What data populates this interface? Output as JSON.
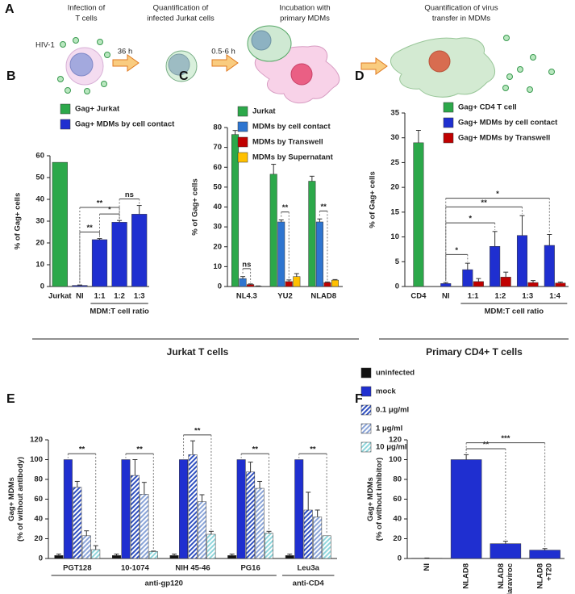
{
  "panel_a": {
    "label": "A",
    "steps": [
      [
        "Infection of",
        "T cells"
      ],
      [
        "Quantification of",
        "infected Jurkat cells"
      ],
      [
        "Incubation with",
        "primary MDMs"
      ],
      [
        "Quantification of virus",
        "transfer in MDMs"
      ]
    ],
    "virus": "HIV-1",
    "times": [
      "36 h",
      "0.5-6 h"
    ]
  },
  "captions": [
    "Jurkat T cells",
    "Primary CD4+ T cells"
  ],
  "chart_data": [
    {
      "type": "bar",
      "label": "B",
      "ylabel": [
        "% of Gag+ cells"
      ],
      "categories": [
        "Jurkat",
        "NI",
        "1:1",
        "1:2",
        "1:3"
      ],
      "series": [
        {
          "name": "Gag+ Jurkat",
          "color": "#2ca84a",
          "values": [
            57,
            null,
            null,
            null,
            null
          ],
          "errors": [
            null,
            null,
            null,
            null,
            null
          ]
        },
        {
          "name": "Gag+ MDMs by cell contact",
          "color": "#1f2fd0",
          "values": [
            null,
            0.5,
            21.5,
            29.5,
            33.2
          ],
          "errors": [
            null,
            0.2,
            0.5,
            0.8,
            4
          ]
        }
      ],
      "ylim": [
        0,
        60
      ],
      "yticks": [
        0,
        10,
        20,
        30,
        40,
        50,
        60
      ],
      "groups": [
        {
          "label": "MDM:T cell ratio",
          "from": "1:1",
          "to": "1:3"
        }
      ],
      "annotations": [
        {
          "text": "**",
          "from": "NI",
          "to": "1:1"
        },
        {
          "text": "*",
          "from": "1:1",
          "to": "1:2"
        },
        {
          "text": "**",
          "from": "NI",
          "to": "1:2"
        },
        {
          "text": "ns",
          "from": "1:2",
          "to": "1:3"
        }
      ]
    },
    {
      "type": "bar",
      "label": "C",
      "ylabel": [
        "% of Gag+ cells"
      ],
      "categories": [
        "NL4.3",
        "YU2",
        "NLAD8"
      ],
      "series": [
        {
          "name": "Jurkat",
          "color": "#2ca84a",
          "values": [
            76.5,
            56.5,
            53
          ],
          "errors": [
            2,
            5,
            2.5
          ]
        },
        {
          "name": "MDMs by cell contact",
          "color": "#2e75d0",
          "values": [
            4,
            32.5,
            32.5
          ],
          "errors": [
            1,
            1,
            1.5
          ]
        },
        {
          "name": "MDMs by Transwell",
          "color": "#c00000",
          "values": [
            1,
            2.5,
            2
          ],
          "errors": [
            0.3,
            0.8,
            0.3
          ]
        },
        {
          "name": "MDMs by Supernatant",
          "color": "#ffc000",
          "values": [
            0.2,
            5,
            3.2
          ],
          "errors": [
            0.1,
            1.5,
            0.3
          ]
        }
      ],
      "ylim": [
        0,
        80
      ],
      "yticks": [
        0,
        10,
        20,
        30,
        40,
        50,
        60,
        70,
        80
      ],
      "annotations": [
        {
          "text": "ns",
          "category": "NL4.3",
          "from": "MDMs by cell contact",
          "to": "MDMs by Transwell"
        },
        {
          "text": "**",
          "category": "YU2",
          "from": "MDMs by cell contact",
          "to": "MDMs by Transwell"
        },
        {
          "text": "**",
          "category": "NLAD8",
          "from": "MDMs by cell contact",
          "to": "MDMs by Transwell"
        }
      ]
    },
    {
      "type": "bar",
      "label": "D",
      "ylabel": [
        "% of Gag+ cells"
      ],
      "categories": [
        "CD4",
        "NI",
        "1:1",
        "1:2",
        "1:3",
        "1:4"
      ],
      "series": [
        {
          "name": "Gag+ CD4 T cell",
          "color": "#2ca84a",
          "values": [
            29,
            null,
            null,
            null,
            null,
            null
          ],
          "errors": [
            2.5,
            null,
            null,
            null,
            null,
            null
          ]
        },
        {
          "name": "Gag+ MDMs by cell contact",
          "color": "#1f2fd0",
          "values": [
            null,
            0.6,
            3.4,
            8.1,
            10.3,
            8.3
          ],
          "errors": [
            null,
            0.2,
            1.3,
            3,
            4,
            2.2
          ]
        },
        {
          "name": "Gag+ MDMs by Transwell",
          "color": "#c00000",
          "values": [
            null,
            null,
            1,
            1.9,
            0.8,
            0.7
          ],
          "errors": [
            null,
            null,
            0.6,
            1,
            0.4,
            0.2
          ]
        }
      ],
      "ylim": [
        0,
        35
      ],
      "yticks": [
        0,
        5,
        10,
        15,
        20,
        25,
        30,
        35
      ],
      "groups": [
        {
          "label": "MDM:T cell ratio",
          "from": "1:1",
          "to": "1:4"
        }
      ],
      "annotations": [
        {
          "text": "*",
          "from": "NI",
          "to": "1:1"
        },
        {
          "text": "*",
          "from": "NI",
          "to": "1:2"
        },
        {
          "text": "**",
          "from": "NI",
          "to": "1:3"
        },
        {
          "text": "*",
          "from": "NI",
          "to": "1:4"
        }
      ]
    },
    {
      "type": "bar",
      "label": "E",
      "ylabel": [
        "Gag+ MDMs",
        "(% of without antibody)"
      ],
      "categories": [
        "PGT128",
        "10-1074",
        "NIH 45-46",
        "PG16",
        "Leu3a"
      ],
      "series": [
        {
          "name": "uninfected",
          "color": "#111111",
          "values": [
            3,
            3,
            3,
            3,
            3
          ],
          "errors": [
            1.5,
            1.5,
            1.5,
            1.5,
            1.5
          ]
        },
        {
          "name": "mock",
          "color": "#1f2fd0",
          "values": [
            100,
            100,
            100,
            100,
            100
          ],
          "errors": [
            null,
            null,
            null,
            null,
            null
          ]
        },
        {
          "name": "0.1 μg/ml",
          "color": "#3050c0",
          "hatch": true,
          "values": [
            72,
            84,
            105,
            87.5,
            49
          ],
          "errors": [
            6,
            16,
            14,
            10,
            18
          ]
        },
        {
          "name": "1 μg/ml",
          "color": "#8aa4d8",
          "hatch": true,
          "values": [
            23,
            65,
            57.5,
            71,
            42
          ],
          "errors": [
            5,
            12,
            7,
            7,
            7
          ]
        },
        {
          "name": "10 μg/ml",
          "color": "#8fd6dc",
          "hatch": true,
          "values": [
            9,
            7,
            24.5,
            25.5,
            23
          ],
          "errors": [
            4,
            0.5,
            3,
            2,
            null
          ]
        }
      ],
      "ylim": [
        0,
        120
      ],
      "yticks": [
        0,
        20,
        40,
        60,
        80,
        100,
        120
      ],
      "groups": [
        {
          "label": "anti-gp120",
          "from": "PGT128",
          "to": "PG16"
        },
        {
          "label": "anti-CD4",
          "from": "Leu3a",
          "to": "Leu3a"
        }
      ],
      "annotations": [
        {
          "text": "**",
          "category": "PGT128",
          "from": "mock",
          "to": "10 μg/ml"
        },
        {
          "text": "**",
          "category": "10-1074",
          "from": "mock",
          "to": "10 μg/ml"
        },
        {
          "text": "**",
          "category": "NIH 45-46",
          "from": "mock",
          "to": "10 μg/ml"
        },
        {
          "text": "**",
          "category": "PG16",
          "from": "mock",
          "to": "10 μg/ml"
        },
        {
          "text": "**",
          "category": "Leu3a",
          "from": "mock",
          "to": "10 μg/ml"
        }
      ]
    },
    {
      "type": "bar",
      "label": "F",
      "ylabel": [
        "Gag+ MDMs",
        "(% of without inhibitor)"
      ],
      "categories": [
        [
          "NI"
        ],
        [
          "NLAD8"
        ],
        [
          "NLAD8",
          "+ Maraviroc"
        ],
        [
          "NLAD8",
          "+T20"
        ]
      ],
      "series": [
        {
          "color": "#1f2fd0",
          "values": [
            0.3,
            100,
            15,
            8.5
          ],
          "errors": [
            0.2,
            5,
            2.5,
            1.5
          ]
        }
      ],
      "ylim": [
        0,
        120
      ],
      "yticks": [
        0,
        20,
        40,
        60,
        80,
        100,
        120
      ],
      "annotations": [
        {
          "text": "**",
          "from": "NLAD8",
          "to": "NLAD8 + Maraviroc"
        },
        {
          "text": "***",
          "from": "NLAD8",
          "to": "NLAD8 +T20"
        }
      ]
    }
  ]
}
